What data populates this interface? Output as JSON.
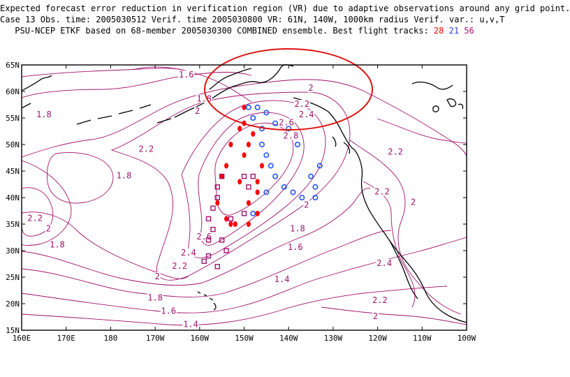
{
  "title": {
    "line1": "Expected forecast error reduction in verification region (VR) due to adaptive observations around any grid point.",
    "line2": "Case 13  Obs. time: 2005030512  Verif. time 2005030800  VR: 61N, 140W, 1000km radius  Verif. var.: u,v,T",
    "line3_prefix": "PSU-NCEP ETKF based on 68-member 2005030300 COMBINED ensemble.  Best flight tracks: ",
    "track_red": "28",
    "track_blue": "21",
    "track_purple": "56"
  },
  "axes": {
    "x_ticks": [
      "160E",
      "170E",
      "180",
      "170W",
      "160W",
      "150W",
      "140W",
      "130W",
      "120W",
      "110W",
      "100W"
    ],
    "y_ticks": [
      "65N",
      "60N",
      "55N",
      "50N",
      "45N",
      "40N",
      "35N",
      "30N",
      "25N",
      "20N",
      "15N"
    ]
  },
  "contour_labels": [
    {
      "text": "1.6",
      "lon": -163,
      "lat": 63
    },
    {
      "text": "1.8",
      "lon": -159,
      "lat": 58.5
    },
    {
      "text": "2",
      "lon": -160.5,
      "lat": 56.2
    },
    {
      "text": "1.8",
      "lon": 165,
      "lat": 55.5
    },
    {
      "text": "2",
      "lon": -135,
      "lat": 60.5
    },
    {
      "text": "2.2",
      "lon": -137,
      "lat": 57.5
    },
    {
      "text": "2.4",
      "lon": -136,
      "lat": 55.5
    },
    {
      "text": "2.6",
      "lon": -140.5,
      "lat": 54
    },
    {
      "text": "2.8",
      "lon": -139.5,
      "lat": 51.5
    },
    {
      "text": "2.2",
      "lon": -172,
      "lat": 49
    },
    {
      "text": "1.8",
      "lon": -177,
      "lat": 44
    },
    {
      "text": "2.2",
      "lon": -116,
      "lat": 48.5
    },
    {
      "text": "2.2",
      "lon": -119,
      "lat": 41
    },
    {
      "text": "2",
      "lon": -112,
      "lat": 39
    },
    {
      "text": "2.2",
      "lon": 163,
      "lat": 36
    },
    {
      "text": "2",
      "lon": 166,
      "lat": 34
    },
    {
      "text": "1.8",
      "lon": 168,
      "lat": 31
    },
    {
      "text": "2",
      "lon": -136,
      "lat": 38.5
    },
    {
      "text": "1.8",
      "lon": -138,
      "lat": 34
    },
    {
      "text": "2.6",
      "lon": -159,
      "lat": 32.5
    },
    {
      "text": "2.4",
      "lon": -162.5,
      "lat": 29.5
    },
    {
      "text": "2.2",
      "lon": -164.5,
      "lat": 27
    },
    {
      "text": "2",
      "lon": -169.5,
      "lat": 25
    },
    {
      "text": "1.8",
      "lon": -170,
      "lat": 21
    },
    {
      "text": "1.6",
      "lon": -167,
      "lat": 18.5
    },
    {
      "text": "1.4",
      "lon": -162,
      "lat": 16
    },
    {
      "text": "1.6",
      "lon": -138.5,
      "lat": 30.5
    },
    {
      "text": "1.4",
      "lon": -141.5,
      "lat": 24.5
    },
    {
      "text": "2.4",
      "lon": -118.5,
      "lat": 27.5
    },
    {
      "text": "2.2",
      "lon": -119.5,
      "lat": 20.5
    },
    {
      "text": "2",
      "lon": -120.5,
      "lat": 17.5
    }
  ],
  "tracks": [
    {
      "name": "28",
      "color": "#ff0000",
      "marker": "dot",
      "points": [
        [
          -150,
          57
        ],
        [
          -150,
          54
        ],
        [
          -151,
          53
        ],
        [
          -148,
          52
        ],
        [
          -149,
          50
        ],
        [
          -153,
          50
        ],
        [
          -150,
          48
        ],
        [
          -154,
          46
        ],
        [
          -146,
          46
        ],
        [
          -155,
          44
        ],
        [
          -151,
          43
        ],
        [
          -147,
          43
        ],
        [
          -147,
          41
        ],
        [
          -156,
          39
        ],
        [
          -149,
          39
        ],
        [
          -147,
          37
        ],
        [
          -154,
          36
        ],
        [
          -152,
          35
        ],
        [
          -149,
          35
        ],
        [
          -153,
          35
        ]
      ]
    },
    {
      "name": "21",
      "color": "#2255ee",
      "marker": "circle",
      "points": [
        [
          -149,
          57
        ],
        [
          -147,
          57
        ],
        [
          -145,
          56
        ],
        [
          -148,
          55
        ],
        [
          -143,
          54
        ],
        [
          -146,
          53
        ],
        [
          -140,
          53
        ],
        [
          -138,
          50
        ],
        [
          -146,
          50
        ],
        [
          -145,
          48
        ],
        [
          -133,
          46
        ],
        [
          -144,
          46
        ],
        [
          -135,
          44
        ],
        [
          -143,
          44
        ],
        [
          -141,
          42
        ],
        [
          -134,
          42
        ],
        [
          -145,
          41
        ],
        [
          -139,
          41
        ],
        [
          -137,
          40
        ],
        [
          -134,
          40
        ],
        [
          -148,
          37
        ]
      ]
    },
    {
      "name": "56",
      "color": "#a0106e",
      "marker": "square",
      "points": [
        [
          -150,
          44
        ],
        [
          -148,
          44
        ],
        [
          -155,
          44
        ],
        [
          -149,
          42
        ],
        [
          -156,
          42
        ],
        [
          -156,
          40
        ],
        [
          -157,
          38
        ],
        [
          -153,
          36
        ],
        [
          -158,
          36
        ],
        [
          -157,
          34
        ],
        [
          -155,
          32
        ],
        [
          -158,
          32
        ],
        [
          -154,
          30
        ],
        [
          -158,
          29
        ],
        [
          -159,
          28
        ],
        [
          -156,
          27
        ],
        [
          -150,
          37
        ]
      ]
    }
  ],
  "vr_circle": {
    "lon": -140,
    "lat": 61
  },
  "colors": {
    "contour": "#a0106e",
    "coast": "#000000",
    "circle": "#dd1111"
  }
}
